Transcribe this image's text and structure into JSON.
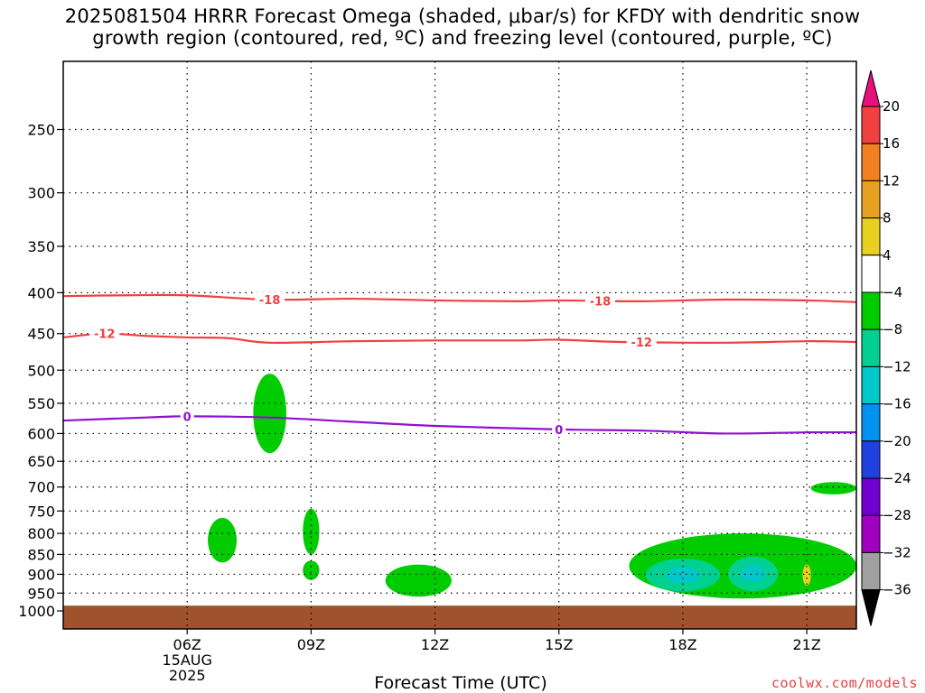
{
  "title_line1": "2025081504 HRRR Forecast Omega (shaded, μbar/s) for KFDY with dendritic snow",
  "title_line2": "growth region (contoured, red, ºC) and freezing level (contoured, purple, ºC)",
  "credit": "coolwx.com/models",
  "chart_data": {
    "type": "time-height cross section",
    "xlabel": "Forecast Time (UTC)",
    "x_ticks": [
      "06Z",
      "09Z",
      "12Z",
      "15Z",
      "18Z",
      "21Z"
    ],
    "x_date_label": [
      "15AUG",
      "2025"
    ],
    "x_range_hours": [
      3.0,
      22.2
    ],
    "y_scale": "log-pressure",
    "y_range_mb": [
      200,
      1050
    ],
    "y_ticks": [
      250,
      300,
      350,
      400,
      450,
      500,
      550,
      600,
      650,
      700,
      750,
      800,
      850,
      900,
      950,
      1000
    ],
    "grid": true,
    "ground_level_mb": 985,
    "contours": [
      {
        "label": "-18",
        "color": "#f04040",
        "points": [
          [
            3.0,
            404
          ],
          [
            4.5,
            403
          ],
          [
            6.0,
            403
          ],
          [
            8.0,
            408
          ],
          [
            10.0,
            407
          ],
          [
            12.0,
            409
          ],
          [
            14.0,
            410
          ],
          [
            15.0,
            409
          ],
          [
            17.0,
            410
          ],
          [
            19.0,
            408
          ],
          [
            21.0,
            409
          ],
          [
            22.2,
            411
          ]
        ],
        "label_at": [
          8.0,
          16.0
        ]
      },
      {
        "label": "-12",
        "color": "#f04040",
        "points": [
          [
            3.0,
            455
          ],
          [
            4.0,
            450
          ],
          [
            5.0,
            453
          ],
          [
            6.0,
            455
          ],
          [
            7.0,
            456
          ],
          [
            8.0,
            462
          ],
          [
            10.0,
            460
          ],
          [
            12.0,
            459
          ],
          [
            14.0,
            459
          ],
          [
            15.0,
            458
          ],
          [
            16.5,
            461
          ],
          [
            19.0,
            462
          ],
          [
            21.0,
            460
          ],
          [
            22.2,
            461
          ]
        ],
        "label_at": [
          4.0,
          17.0
        ]
      },
      {
        "label": "0",
        "color": "#9010d0",
        "points": [
          [
            3.0,
            578
          ],
          [
            5.0,
            573
          ],
          [
            6.0,
            571
          ],
          [
            8.0,
            573
          ],
          [
            10.0,
            580
          ],
          [
            12.0,
            587
          ],
          [
            15.0,
            593
          ],
          [
            17.0,
            595
          ],
          [
            19.0,
            600
          ],
          [
            21.0,
            598
          ],
          [
            22.2,
            598
          ]
        ],
        "label_at": [
          6.0,
          15.0
        ]
      }
    ],
    "omega_shaded_regions": [
      {
        "level": -4,
        "color": "#00cc00",
        "center": [
          8.0,
          565
        ],
        "extent": "7.6-8.4 h, 505-635 mb"
      },
      {
        "level": -4,
        "color": "#00cc00",
        "center": [
          6.9,
          815
        ],
        "extent": "6.5-7.2 h, 765-870 mb"
      },
      {
        "level": -4,
        "color": "#00cc00",
        "center": [
          9.0,
          795
        ],
        "extent": "8.8-9.2 h, 745-850 mb"
      },
      {
        "level": -4,
        "color": "#00cc00",
        "center": [
          9.0,
          885
        ],
        "extent": "8.8-9.2 h, 865-915 mb"
      },
      {
        "level": -4,
        "color": "#00cc00",
        "center": [
          12.0,
          935
        ],
        "extent": "10.8-12.4 h, 875-960 mb"
      },
      {
        "level": -4,
        "color": "#00cc00",
        "center": [
          19.0,
          880
        ],
        "extent": "16.7-22.2 h, 800-965 mb"
      },
      {
        "level": -4,
        "color": "#00cc00",
        "center": [
          21.8,
          700
        ],
        "extent": "21.1-22.2 h, 690-715 mb"
      },
      {
        "level": -8,
        "color": "#00d090",
        "center": [
          18.0,
          900
        ],
        "extent": "17.1-18.9 h, 860-945 mb"
      },
      {
        "level": -8,
        "color": "#00d090",
        "center": [
          19.7,
          895
        ],
        "extent": "19.1-20.3 h, 855-945 mb"
      },
      {
        "level": -12,
        "color": "#00c8c8",
        "center": [
          18.0,
          900
        ],
        "extent": "17.6-18.4 h, 880-925 mb"
      },
      {
        "level": -12,
        "color": "#00c8c8",
        "center": [
          19.7,
          895
        ],
        "extent": "19.4-20.0 h, 875-920 mb"
      },
      {
        "level": 4,
        "color": "#e8d020",
        "center": [
          21.0,
          900
        ],
        "extent": "20.9-21.1 h, 875-930 mb"
      }
    ],
    "colorbar": {
      "labels": [
        "20",
        "16",
        "12",
        "8",
        "4",
        "−4",
        "−8",
        "−12",
        "−16",
        "−20",
        "−24",
        "−28",
        "−32",
        "−36"
      ],
      "colors": [
        "#f04040",
        "#f08020",
        "#e8a020",
        "#e8d020",
        "#ffffff",
        "#00cc00",
        "#00d090",
        "#00c8c8",
        "#0090f0",
        "#2040e0",
        "#7000d0",
        "#a000c0",
        "#a0a0a0"
      ],
      "top_arrow_color": "#e8107a",
      "bottom_arrow_color": "#000000"
    }
  }
}
